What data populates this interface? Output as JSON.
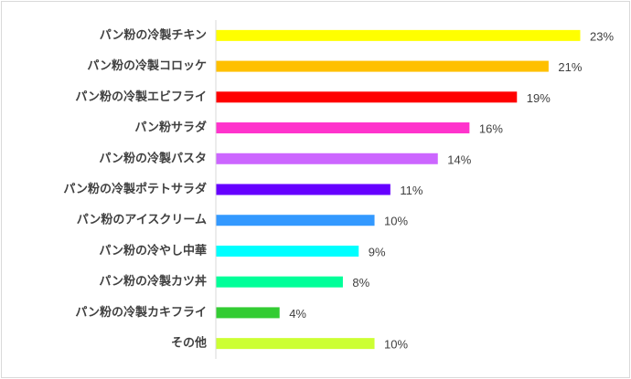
{
  "chart_data": {
    "type": "bar",
    "orientation": "horizontal",
    "categories": [
      "パン粉の冷製チキン",
      "パン粉の冷製コロッケ",
      "パン粉の冷製エビフライ",
      "パン粉サラダ",
      "パン粉の冷製パスタ",
      "パン粉の冷製ポテトサラダ",
      "パン粉のアイスクリーム",
      "パン粉の冷やし中華",
      "パン粉の冷製カツ丼",
      "パン粉の冷製カキフライ",
      "その他"
    ],
    "values": [
      23,
      21,
      19,
      16,
      14,
      11,
      10,
      9,
      8,
      4,
      10
    ],
    "value_labels": [
      "23%",
      "21%",
      "19%",
      "16%",
      "14%",
      "11%",
      "10%",
      "9%",
      "8%",
      "4%",
      "10%"
    ],
    "colors": [
      "#FFFF00",
      "#FFC000",
      "#FF0000",
      "#FF33CC",
      "#CC66FF",
      "#6600FF",
      "#3399FF",
      "#00FFFF",
      "#00FF99",
      "#33CC33",
      "#CCFF33"
    ],
    "unit": "%",
    "xlim": [
      0,
      23
    ],
    "grid": false,
    "title": "",
    "xlabel": "",
    "ylabel": ""
  }
}
